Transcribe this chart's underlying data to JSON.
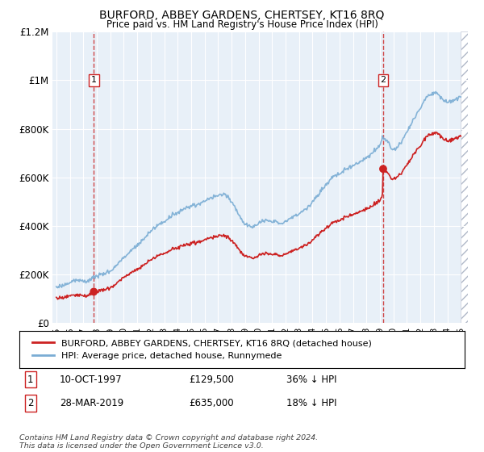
{
  "title": "BURFORD, ABBEY GARDENS, CHERTSEY, KT16 8RQ",
  "subtitle": "Price paid vs. HM Land Registry's House Price Index (HPI)",
  "hpi_label": "HPI: Average price, detached house, Runnymede",
  "price_label": "BURFORD, ABBEY GARDENS, CHERTSEY, KT16 8RQ (detached house)",
  "footnote": "Contains HM Land Registry data © Crown copyright and database right 2024.\nThis data is licensed under the Open Government Licence v3.0.",
  "sale1_date": "10-OCT-1997",
  "sale1_price": "£129,500",
  "sale1_hpi": "36% ↓ HPI",
  "sale2_date": "28-MAR-2019",
  "sale2_price": "£635,000",
  "sale2_hpi": "18% ↓ HPI",
  "hpi_color": "#7aadd4",
  "price_color": "#cc2222",
  "background_color": "#e8f0f8",
  "ylim": [
    0,
    1200000
  ],
  "yticks": [
    0,
    200000,
    400000,
    600000,
    800000,
    1000000,
    1200000
  ],
  "ytick_labels": [
    "£0",
    "£200K",
    "£400K",
    "£600K",
    "£800K",
    "£1M",
    "£1.2M"
  ],
  "xlim_start": 1994.7,
  "xlim_end": 2025.5,
  "sale1_x": 1997.78,
  "sale1_y": 129500,
  "sale2_x": 2019.24,
  "sale2_y": 635000
}
